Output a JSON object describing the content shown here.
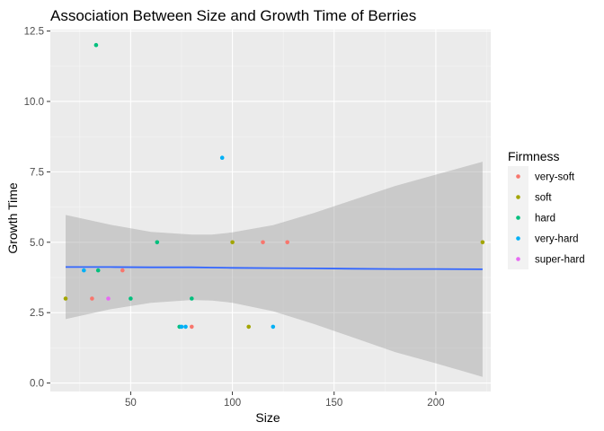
{
  "chart_data": {
    "type": "scatter",
    "title": "Association Between Size and Growth Time of Berries",
    "xlabel": "Size",
    "ylabel": "Growth Time",
    "xlim": [
      10.5,
      227
    ],
    "ylim": [
      -0.3,
      12.55
    ],
    "x_ticks": [
      50,
      100,
      150,
      200
    ],
    "y_ticks": [
      0.0,
      2.5,
      5.0,
      7.5,
      10.0,
      12.5
    ],
    "y_tick_labels": [
      "0.0",
      "2.5",
      "5.0",
      "7.5",
      "10.0",
      "12.5"
    ],
    "x_tick_labels": [
      "50",
      "100",
      "150",
      "200"
    ],
    "grid": true,
    "legend": {
      "title": "Firmness",
      "position": "right"
    },
    "series": [
      {
        "name": "very-soft",
        "color": "#F8766D",
        "points": [
          {
            "x": 31,
            "y": 3
          },
          {
            "x": 46,
            "y": 4
          },
          {
            "x": 80,
            "y": 2
          },
          {
            "x": 115,
            "y": 5
          },
          {
            "x": 127,
            "y": 5
          }
        ]
      },
      {
        "name": "soft",
        "color": "#A3A500",
        "points": [
          {
            "x": 18,
            "y": 3
          },
          {
            "x": 100,
            "y": 5
          },
          {
            "x": 108,
            "y": 2
          },
          {
            "x": 223,
            "y": 5
          }
        ]
      },
      {
        "name": "hard",
        "color": "#00BF7D",
        "points": [
          {
            "x": 33,
            "y": 12
          },
          {
            "x": 34,
            "y": 4
          },
          {
            "x": 50,
            "y": 3
          },
          {
            "x": 63,
            "y": 5
          },
          {
            "x": 74,
            "y": 2
          },
          {
            "x": 80,
            "y": 3
          }
        ]
      },
      {
        "name": "very-hard",
        "color": "#00B0F6",
        "points": [
          {
            "x": 27,
            "y": 4
          },
          {
            "x": 75,
            "y": 2
          },
          {
            "x": 77,
            "y": 2
          },
          {
            "x": 95,
            "y": 8
          },
          {
            "x": 120,
            "y": 2
          }
        ]
      },
      {
        "name": "super-hard",
        "color": "#E76BF3",
        "points": [
          {
            "x": 39,
            "y": 3
          }
        ]
      }
    ],
    "smooth": {
      "method": "loess",
      "color": "#3366FF",
      "band_color": "#999999",
      "x": [
        18,
        40,
        60,
        80,
        90,
        100,
        120,
        140,
        160,
        180,
        200,
        223
      ],
      "fit": [
        4.12,
        4.12,
        4.11,
        4.11,
        4.1,
        4.09,
        4.08,
        4.07,
        4.06,
        4.05,
        4.05,
        4.04
      ],
      "lower": [
        2.27,
        2.62,
        2.85,
        2.95,
        2.93,
        2.85,
        2.55,
        2.1,
        1.6,
        1.1,
        0.7,
        0.22
      ],
      "upper": [
        5.97,
        5.62,
        5.37,
        5.27,
        5.27,
        5.35,
        5.61,
        6.04,
        6.52,
        7.0,
        7.4,
        7.86
      ]
    }
  }
}
